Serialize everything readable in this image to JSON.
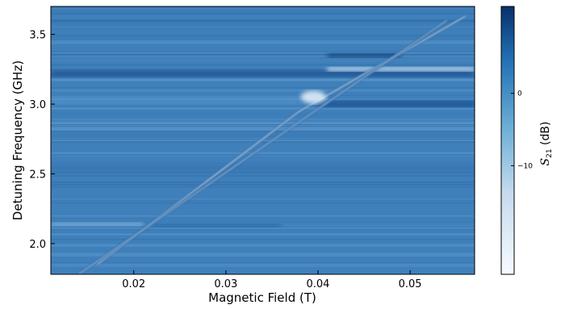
{
  "chart_data": {
    "type": "heatmap",
    "title": "",
    "xlabel": "Magnetic Field (T)",
    "ylabel": "Detuning Frequency (GHz)",
    "xlim": [
      0.011,
      0.057
    ],
    "ylim": [
      1.78,
      3.7
    ],
    "x_ticks": [
      0.02,
      0.03,
      0.04,
      0.05
    ],
    "x_tick_labels": [
      "0.02",
      "0.03",
      "0.04",
      "0.05"
    ],
    "y_ticks": [
      2.0,
      2.5,
      3.0,
      3.5
    ],
    "y_tick_labels": [
      "2.0",
      "2.5",
      "3.0",
      "3.5"
    ],
    "grid": false,
    "legend": "none",
    "colormap": "Blues",
    "colorbar": {
      "label": "S21 (dB)",
      "label_main": "S",
      "label_sub": "21",
      "label_unit": " (dB)",
      "ticks": [
        0,
        -10
      ],
      "tick_labels": [
        "0",
        "−10"
      ]
    },
    "background_color": "#3f80bb",
    "features": {
      "mode_line_upper": {
        "x": [
          0.016,
          0.038,
          0.056
        ],
        "y": [
          1.85,
          2.95,
          3.63
        ]
      },
      "mode_line_lower": {
        "x": [
          0.014,
          0.039,
          0.054
        ],
        "y": [
          1.78,
          2.92,
          3.6
        ]
      },
      "cavity_resonances_ghz": [
        2.14,
        3.03,
        3.22
      ]
    }
  }
}
